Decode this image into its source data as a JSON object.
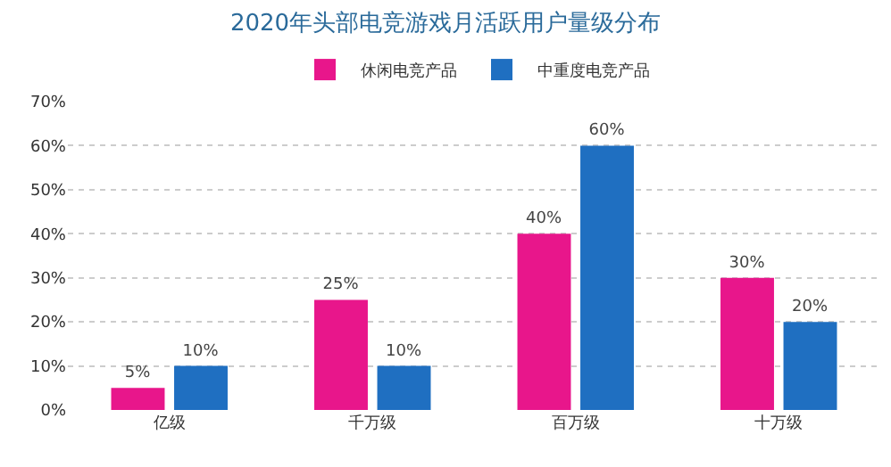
{
  "chart_data": {
    "type": "bar",
    "title": "2020年头部电竞游戏月活跃用户量级分布",
    "categories": [
      "亿级",
      "千万级",
      "百万级",
      "十万级"
    ],
    "series": [
      {
        "name": "休闲电竞产品",
        "color": "#e8168b",
        "values": [
          5,
          25,
          40,
          30
        ],
        "value_labels": [
          "5%",
          "25%",
          "40%",
          "30%"
        ]
      },
      {
        "name": "中重度电竞产品",
        "color": "#1f6fc1",
        "values": [
          10,
          10,
          60,
          20
        ],
        "value_labels": [
          "10%",
          "10%",
          "60%",
          "20%"
        ]
      }
    ],
    "ylim": [
      0,
      70
    ],
    "yticks": [
      {
        "value": 0,
        "label": "0%"
      },
      {
        "value": 10,
        "label": "10%"
      },
      {
        "value": 20,
        "label": "20%"
      },
      {
        "value": 30,
        "label": "30%"
      },
      {
        "value": 40,
        "label": "40%"
      },
      {
        "value": 50,
        "label": "50%"
      },
      {
        "value": 60,
        "label": "60%"
      },
      {
        "value": 70,
        "label": "70%"
      }
    ],
    "grid": "y",
    "legend": "top"
  }
}
